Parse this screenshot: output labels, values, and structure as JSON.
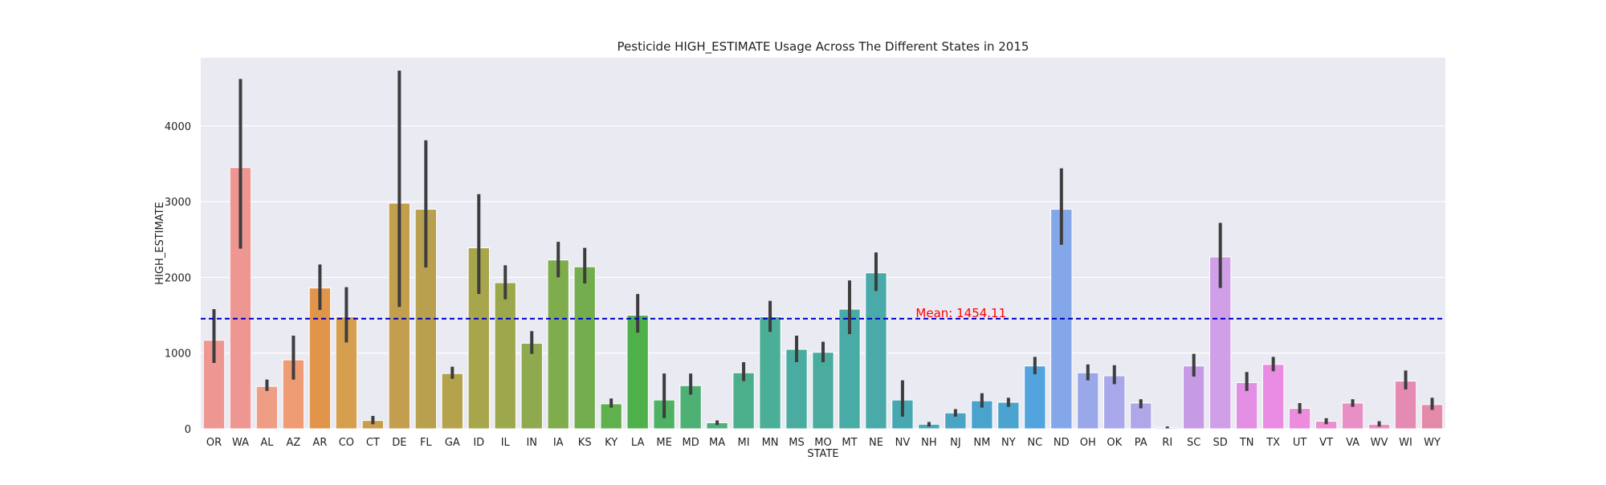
{
  "chart_data": {
    "type": "bar",
    "title": "Pesticide HIGH_ESTIMATE Usage Across The Different States in 2015",
    "xlabel": "STATE",
    "ylabel": "HIGH_ESTIMATE",
    "ylim": [
      0,
      4900
    ],
    "yticks": [
      0,
      1000,
      2000,
      3000,
      4000
    ],
    "grid": true,
    "categories": [
      "OR",
      "WA",
      "AL",
      "AZ",
      "AR",
      "CO",
      "CT",
      "DE",
      "FL",
      "GA",
      "ID",
      "IL",
      "IN",
      "IA",
      "KS",
      "KY",
      "LA",
      "ME",
      "MD",
      "MA",
      "MI",
      "MN",
      "MS",
      "MO",
      "MT",
      "NE",
      "NV",
      "NH",
      "NJ",
      "NM",
      "NY",
      "NC",
      "ND",
      "OH",
      "OK",
      "PA",
      "RI",
      "SC",
      "SD",
      "TN",
      "TX",
      "UT",
      "VT",
      "VA",
      "WV",
      "WI",
      "WY"
    ],
    "values": [
      1170,
      3450,
      560,
      910,
      1860,
      1480,
      110,
      2980,
      2900,
      730,
      2390,
      1930,
      1130,
      2230,
      2140,
      330,
      1500,
      380,
      570,
      80,
      740,
      1480,
      1050,
      1010,
      1580,
      2060,
      380,
      60,
      210,
      370,
      350,
      830,
      2900,
      740,
      700,
      340,
      15,
      830,
      2270,
      610,
      850,
      270,
      100,
      340,
      60,
      630,
      320
    ],
    "error_low": [
      870,
      2380,
      500,
      650,
      1570,
      1140,
      60,
      1610,
      2130,
      660,
      1780,
      1710,
      990,
      2000,
      1920,
      280,
      1270,
      140,
      450,
      50,
      630,
      1280,
      880,
      880,
      1250,
      1820,
      160,
      30,
      160,
      280,
      290,
      720,
      2430,
      640,
      590,
      270,
      5,
      690,
      1860,
      500,
      760,
      200,
      60,
      290,
      30,
      520,
      250
    ],
    "error_high": [
      1580,
      4620,
      650,
      1230,
      2170,
      1870,
      170,
      4730,
      3810,
      820,
      3100,
      2160,
      1290,
      2470,
      2390,
      400,
      1780,
      730,
      730,
      110,
      880,
      1690,
      1230,
      1150,
      1960,
      2330,
      640,
      90,
      260,
      470,
      410,
      950,
      3440,
      850,
      840,
      390,
      30,
      990,
      2720,
      750,
      950,
      340,
      140,
      390,
      100,
      770,
      410
    ],
    "colors": [
      "#ee9691",
      "#ee9691",
      "#ee9e85",
      "#ef9b73",
      "#e1954b",
      "#d69f4e",
      "#c99d4e",
      "#c29e4e",
      "#b9a04e",
      "#b4a24d",
      "#a7a64c",
      "#9da84d",
      "#8ea94e",
      "#7fad4e",
      "#73ad4e",
      "#60b14d",
      "#4eb14a",
      "#4eb164",
      "#4eb074",
      "#4db07e",
      "#4caf8c",
      "#4bae96",
      "#4aaca0",
      "#4aab9f",
      "#49aba6",
      "#4aaaaa",
      "#48a8b2",
      "#49a8ba",
      "#4aa5c4",
      "#4aa3cd",
      "#4ba3cf",
      "#53a3df",
      "#83a7e8",
      "#9aa8e9",
      "#a8a8ea",
      "#b0a7e9",
      "#b9a7e9",
      "#c79ae6",
      "#d09fe8",
      "#e28ee3",
      "#e98be2",
      "#ec8cdd",
      "#ec8ed2",
      "#e88fc6",
      "#e88fc0",
      "#e58ab2",
      "#e28aa7"
    ],
    "mean_line": {
      "value": 1454.11,
      "label": "Mean: 1454.11",
      "line_color": "#0000cd",
      "text_color": "#ff0000"
    }
  }
}
